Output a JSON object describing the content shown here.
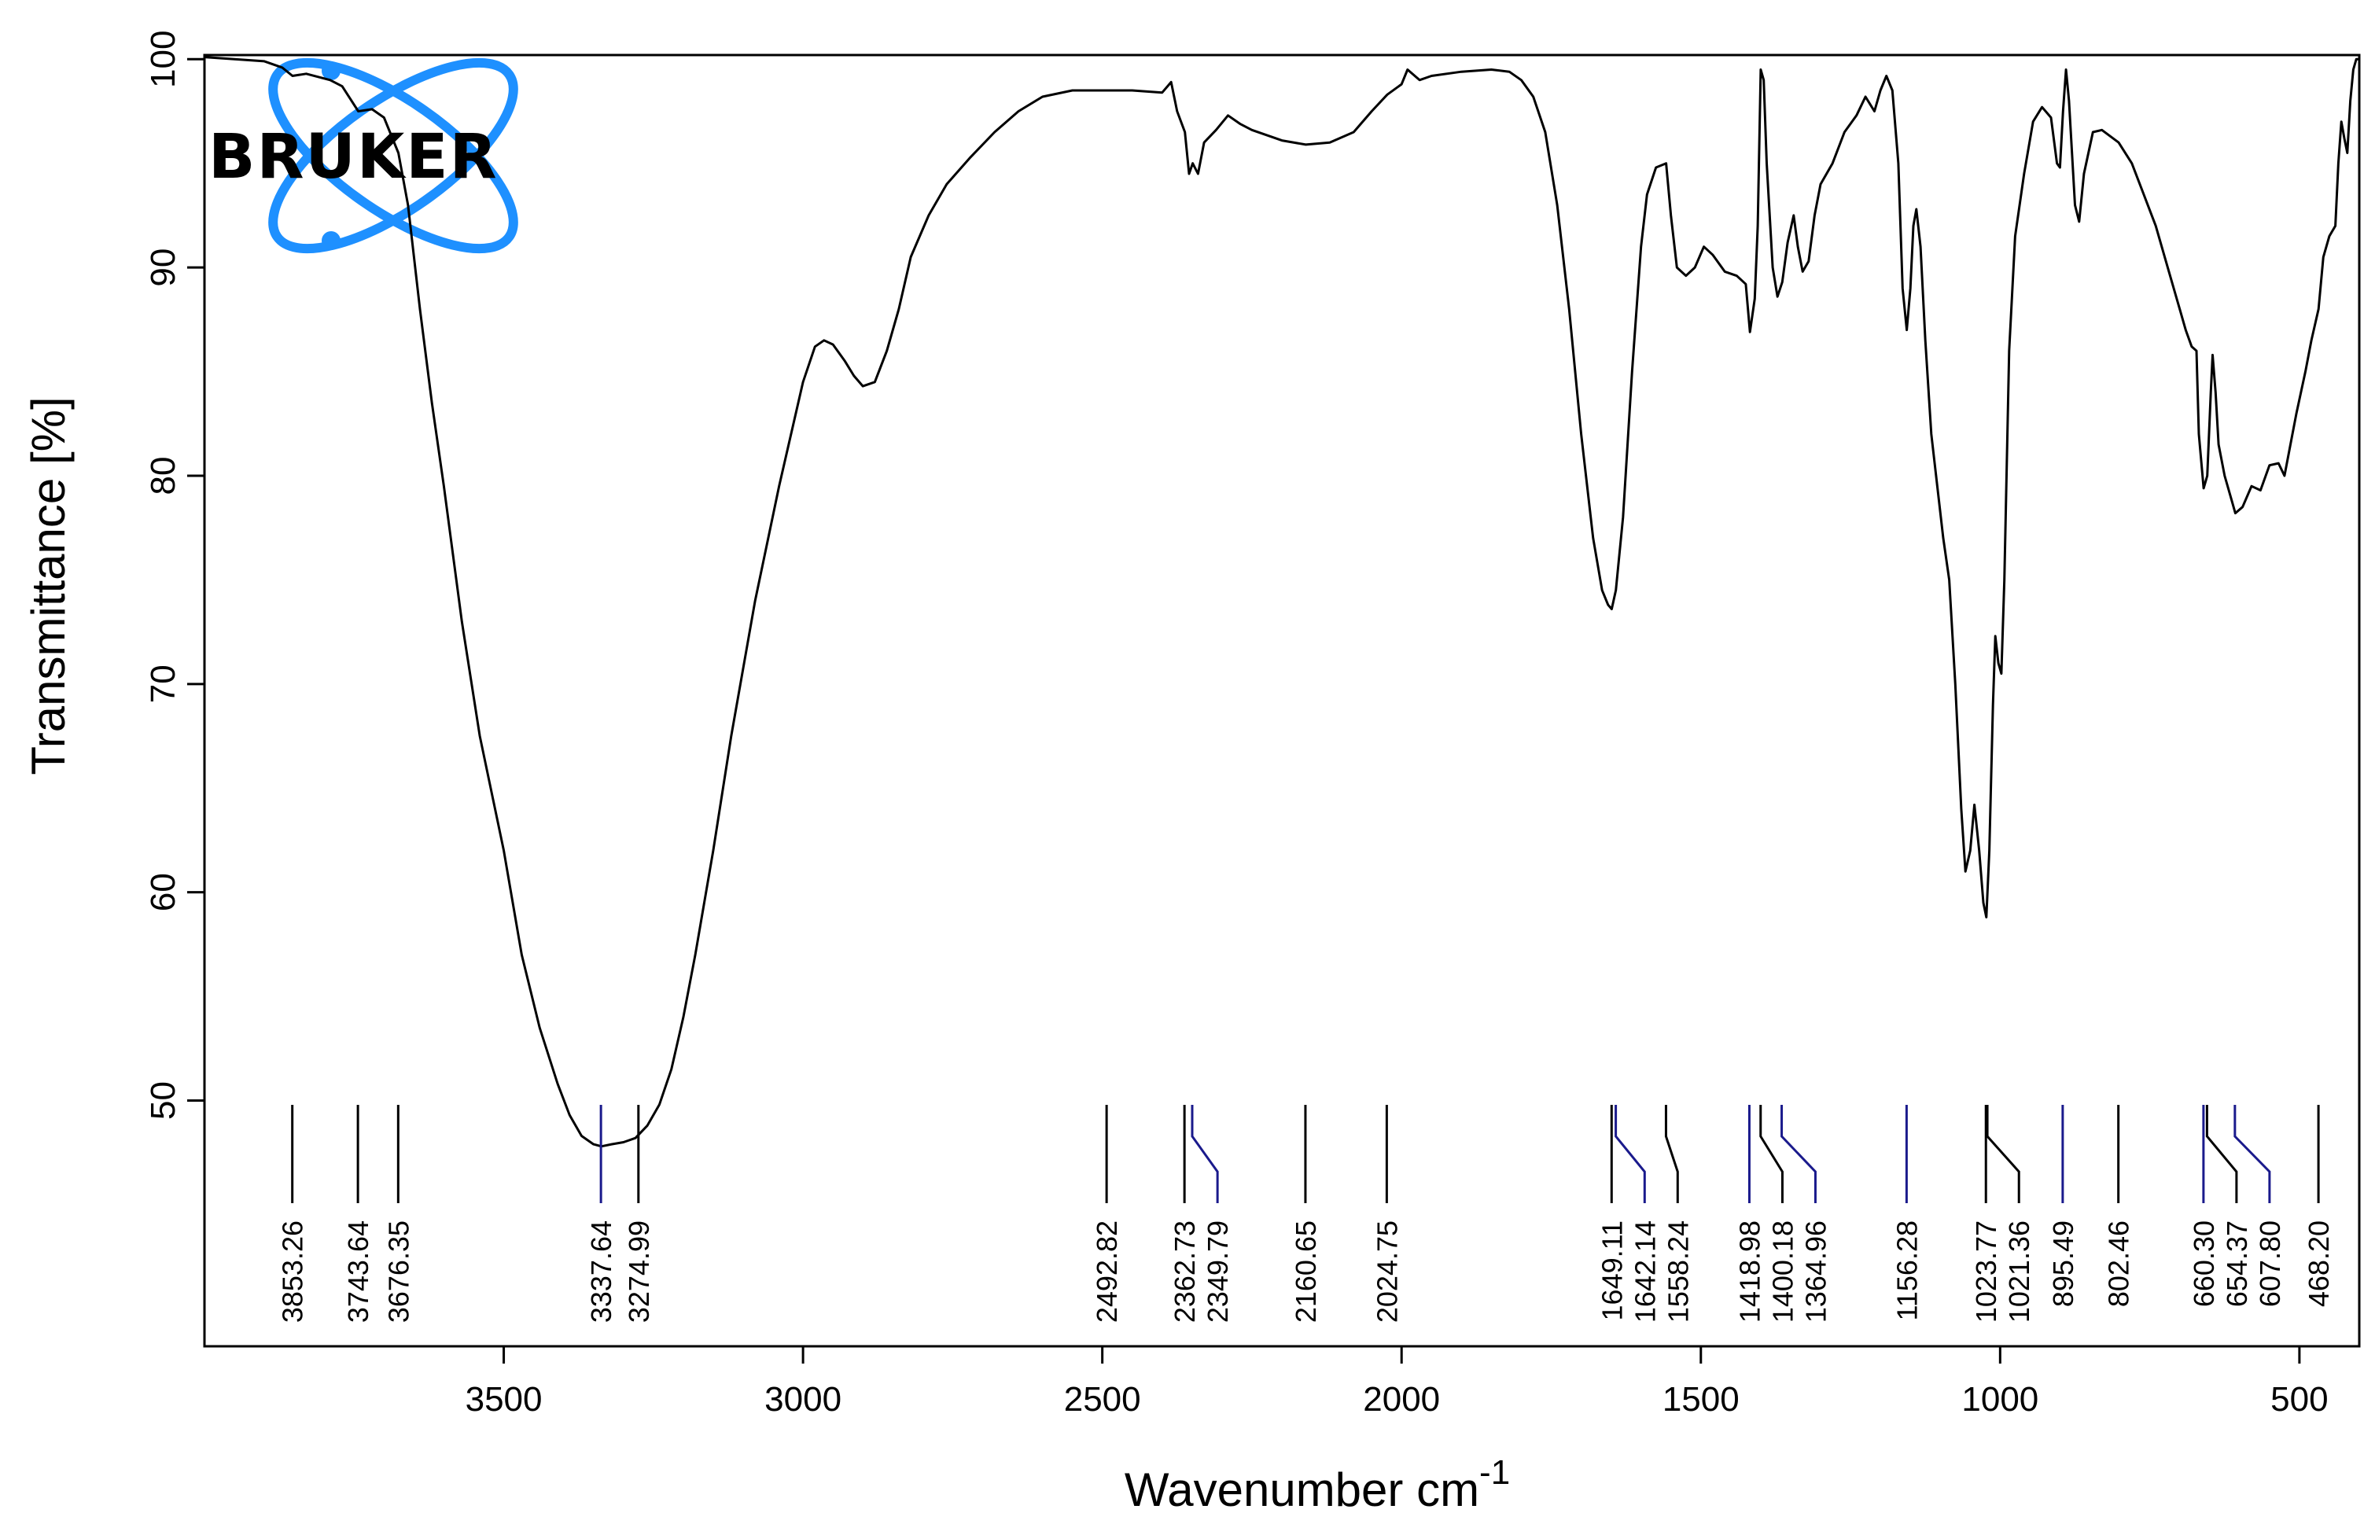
{
  "logo": {
    "text": "BRUKER",
    "color": "#1e90ff"
  },
  "chart_data": {
    "type": "line",
    "title": "",
    "xlabel": "Wavenumber cm",
    "xlabel_superscript": "-1",
    "ylabel": "Transmittance [%]",
    "xlim": [
      4000,
      400
    ],
    "x_reversed": true,
    "ylim": [
      38.2,
      100.2
    ],
    "xticks": [
      3500,
      3000,
      2500,
      2000,
      1500,
      1000,
      500
    ],
    "yticks": [
      50,
      60,
      70,
      80,
      90,
      100
    ],
    "grid": false,
    "series": [
      {
        "color": "#000000",
        "points": [
          [
            4000,
            100.1
          ],
          [
            3950,
            100.0
          ],
          [
            3900,
            99.9
          ],
          [
            3870,
            99.6
          ],
          [
            3853,
            99.2
          ],
          [
            3830,
            99.3
          ],
          [
            3790,
            99.0
          ],
          [
            3770,
            98.7
          ],
          [
            3743,
            97.5
          ],
          [
            3720,
            97.6
          ],
          [
            3700,
            97.2
          ],
          [
            3676,
            95.5
          ],
          [
            3660,
            93.0
          ],
          [
            3640,
            88.0
          ],
          [
            3620,
            83.5
          ],
          [
            3600,
            79.5
          ],
          [
            3570,
            73.0
          ],
          [
            3540,
            67.5
          ],
          [
            3500,
            62.0
          ],
          [
            3470,
            57.0
          ],
          [
            3440,
            53.5
          ],
          [
            3410,
            50.8
          ],
          [
            3390,
            49.3
          ],
          [
            3370,
            48.3
          ],
          [
            3350,
            47.9
          ],
          [
            3337,
            47.8
          ],
          [
            3320,
            47.9
          ],
          [
            3300,
            48.0
          ],
          [
            3280,
            48.2
          ],
          [
            3260,
            48.8
          ],
          [
            3240,
            49.8
          ],
          [
            3220,
            51.5
          ],
          [
            3200,
            54.0
          ],
          [
            3180,
            57.0
          ],
          [
            3150,
            62.0
          ],
          [
            3120,
            67.5
          ],
          [
            3080,
            74.0
          ],
          [
            3040,
            79.5
          ],
          [
            3000,
            84.5
          ],
          [
            2980,
            86.2
          ],
          [
            2965,
            86.5
          ],
          [
            2950,
            86.3
          ],
          [
            2930,
            85.5
          ],
          [
            2915,
            84.8
          ],
          [
            2900,
            84.3
          ],
          [
            2880,
            84.5
          ],
          [
            2860,
            86.0
          ],
          [
            2840,
            88.0
          ],
          [
            2820,
            90.5
          ],
          [
            2790,
            92.5
          ],
          [
            2760,
            94.0
          ],
          [
            2720,
            95.3
          ],
          [
            2680,
            96.5
          ],
          [
            2640,
            97.5
          ],
          [
            2600,
            98.2
          ],
          [
            2550,
            98.5
          ],
          [
            2492,
            98.5
          ],
          [
            2450,
            98.5
          ],
          [
            2400,
            98.4
          ],
          [
            2385,
            98.9
          ],
          [
            2375,
            97.5
          ],
          [
            2362,
            96.5
          ],
          [
            2355,
            94.5
          ],
          [
            2349,
            95.0
          ],
          [
            2340,
            94.5
          ],
          [
            2330,
            96.0
          ],
          [
            2310,
            96.6
          ],
          [
            2290,
            97.3
          ],
          [
            2270,
            96.9
          ],
          [
            2250,
            96.6
          ],
          [
            2200,
            96.1
          ],
          [
            2160,
            95.9
          ],
          [
            2120,
            96.0
          ],
          [
            2080,
            96.5
          ],
          [
            2050,
            97.5
          ],
          [
            2024,
            98.3
          ],
          [
            2000,
            98.8
          ],
          [
            1990,
            99.5
          ],
          [
            1970,
            99.0
          ],
          [
            1950,
            99.2
          ],
          [
            1900,
            99.4
          ],
          [
            1850,
            99.5
          ],
          [
            1820,
            99.4
          ],
          [
            1800,
            99.0
          ],
          [
            1780,
            98.2
          ],
          [
            1760,
            96.5
          ],
          [
            1740,
            93.0
          ],
          [
            1720,
            88.0
          ],
          [
            1700,
            82.0
          ],
          [
            1680,
            77.0
          ],
          [
            1665,
            74.5
          ],
          [
            1655,
            73.8
          ],
          [
            1649,
            73.6
          ],
          [
            1642,
            74.5
          ],
          [
            1630,
            78.0
          ],
          [
            1615,
            85.0
          ],
          [
            1600,
            91.0
          ],
          [
            1590,
            93.5
          ],
          [
            1575,
            94.8
          ],
          [
            1558,
            95.0
          ],
          [
            1550,
            92.5
          ],
          [
            1540,
            90.0
          ],
          [
            1525,
            89.6
          ],
          [
            1510,
            90.0
          ],
          [
            1495,
            91.0
          ],
          [
            1480,
            90.6
          ],
          [
            1460,
            89.8
          ],
          [
            1440,
            89.6
          ],
          [
            1425,
            89.2
          ],
          [
            1418,
            86.9
          ],
          [
            1410,
            88.5
          ],
          [
            1405,
            92.0
          ],
          [
            1400,
            99.5
          ],
          [
            1395,
            99.0
          ],
          [
            1390,
            95.0
          ],
          [
            1380,
            90.0
          ],
          [
            1372,
            88.6
          ],
          [
            1364,
            89.3
          ],
          [
            1355,
            91.2
          ],
          [
            1345,
            92.5
          ],
          [
            1338,
            91.0
          ],
          [
            1330,
            89.8
          ],
          [
            1320,
            90.3
          ],
          [
            1310,
            92.5
          ],
          [
            1300,
            94.0
          ],
          [
            1280,
            95.0
          ],
          [
            1260,
            96.5
          ],
          [
            1240,
            97.3
          ],
          [
            1225,
            98.2
          ],
          [
            1210,
            97.5
          ],
          [
            1200,
            98.5
          ],
          [
            1190,
            99.2
          ],
          [
            1180,
            98.5
          ],
          [
            1170,
            95.0
          ],
          [
            1163,
            89.0
          ],
          [
            1156,
            87.0
          ],
          [
            1150,
            89.0
          ],
          [
            1145,
            92.0
          ],
          [
            1140,
            92.8
          ],
          [
            1133,
            91.0
          ],
          [
            1125,
            86.5
          ],
          [
            1115,
            82.0
          ],
          [
            1105,
            79.5
          ],
          [
            1095,
            77.0
          ],
          [
            1085,
            75.0
          ],
          [
            1075,
            70.0
          ],
          [
            1065,
            64.0
          ],
          [
            1058,
            61.0
          ],
          [
            1050,
            62.0
          ],
          [
            1043,
            64.2
          ],
          [
            1035,
            62.0
          ],
          [
            1028,
            59.5
          ],
          [
            1023,
            58.8
          ],
          [
            1018,
            62.0
          ],
          [
            1012,
            69.0
          ],
          [
            1008,
            72.3
          ],
          [
            1003,
            71.0
          ],
          [
            998,
            70.5
          ],
          [
            993,
            75.0
          ],
          [
            985,
            86.0
          ],
          [
            975,
            91.5
          ],
          [
            960,
            94.5
          ],
          [
            945,
            97.0
          ],
          [
            930,
            97.7
          ],
          [
            915,
            97.2
          ],
          [
            905,
            95.0
          ],
          [
            900,
            94.8
          ],
          [
            895,
            97.5
          ],
          [
            890,
            99.5
          ],
          [
            885,
            98.0
          ],
          [
            875,
            93.0
          ],
          [
            868,
            92.2
          ],
          [
            860,
            94.5
          ],
          [
            845,
            96.5
          ],
          [
            830,
            96.6
          ],
          [
            802,
            96.0
          ],
          [
            780,
            95.0
          ],
          [
            760,
            93.5
          ],
          [
            740,
            92.0
          ],
          [
            720,
            90.0
          ],
          [
            700,
            88.0
          ],
          [
            690,
            87.0
          ],
          [
            680,
            86.2
          ],
          [
            672,
            86.0
          ],
          [
            668,
            82.0
          ],
          [
            660,
            79.4
          ],
          [
            654,
            80.0
          ],
          [
            648,
            84.0
          ],
          [
            645,
            85.8
          ],
          [
            640,
            84.0
          ],
          [
            635,
            81.5
          ],
          [
            625,
            80.0
          ],
          [
            615,
            79.0
          ],
          [
            607,
            78.2
          ],
          [
            595,
            78.5
          ],
          [
            580,
            79.5
          ],
          [
            565,
            79.3
          ],
          [
            550,
            80.5
          ],
          [
            535,
            80.6
          ],
          [
            525,
            80.0
          ],
          [
            515,
            81.5
          ],
          [
            505,
            83.0
          ],
          [
            490,
            85.0
          ],
          [
            480,
            86.5
          ],
          [
            468,
            88.0
          ],
          [
            460,
            90.5
          ],
          [
            450,
            91.5
          ],
          [
            440,
            92.0
          ],
          [
            435,
            95.0
          ],
          [
            430,
            97.0
          ],
          [
            425,
            96.2
          ],
          [
            420,
            95.5
          ],
          [
            415,
            98.0
          ],
          [
            410,
            99.5
          ],
          [
            405,
            100.0
          ],
          [
            400,
            100.0
          ]
        ]
      }
    ],
    "peaks": [
      {
        "label": "3853.26",
        "x": 3853.26,
        "color": "#000000"
      },
      {
        "label": "3743.64",
        "x": 3743.64,
        "color": "#000000"
      },
      {
        "label": "3676.35",
        "x": 3676.35,
        "color": "#000000"
      },
      {
        "label": "3337.64",
        "x": 3337.64,
        "color": "#1a1a8c"
      },
      {
        "label": "3274.99",
        "x": 3274.99,
        "color": "#000000"
      },
      {
        "label": "2492.82",
        "x": 2492.82,
        "color": "#000000"
      },
      {
        "label": "2362.73",
        "x": 2362.73,
        "color": "#000000"
      },
      {
        "label": "2349.79",
        "x": 2349.79,
        "color": "#1a1a8c"
      },
      {
        "label": "2160.65",
        "x": 2160.65,
        "color": "#000000"
      },
      {
        "label": "2024.75",
        "x": 2024.75,
        "color": "#000000"
      },
      {
        "label": "1649.11",
        "x": 1649.11,
        "color": "#000000"
      },
      {
        "label": "1642.14",
        "x": 1642.14,
        "color": "#1a1a8c"
      },
      {
        "label": "1558.24",
        "x": 1558.24,
        "color": "#000000"
      },
      {
        "label": "1418.98",
        "x": 1418.98,
        "color": "#1a1a8c"
      },
      {
        "label": "1400.18",
        "x": 1400.18,
        "color": "#000000"
      },
      {
        "label": "1364.96",
        "x": 1364.96,
        "color": "#1a1a8c"
      },
      {
        "label": "1156.28",
        "x": 1156.28,
        "color": "#1a1a8c"
      },
      {
        "label": "1023.77",
        "x": 1023.77,
        "color": "#000000"
      },
      {
        "label": "1021.36",
        "x": 1021.36,
        "color": "#000000"
      },
      {
        "label": "895.49",
        "x": 895.49,
        "color": "#1a1a8c"
      },
      {
        "label": "802.46",
        "x": 802.46,
        "color": "#000000"
      },
      {
        "label": "660.30",
        "x": 660.3,
        "color": "#1a1a8c"
      },
      {
        "label": "654.37",
        "x": 654.37,
        "color": "#000000"
      },
      {
        "label": "607.80",
        "x": 607.8,
        "color": "#1a1a8c"
      },
      {
        "label": "468.20",
        "x": 468.2,
        "color": "#000000"
      }
    ]
  }
}
